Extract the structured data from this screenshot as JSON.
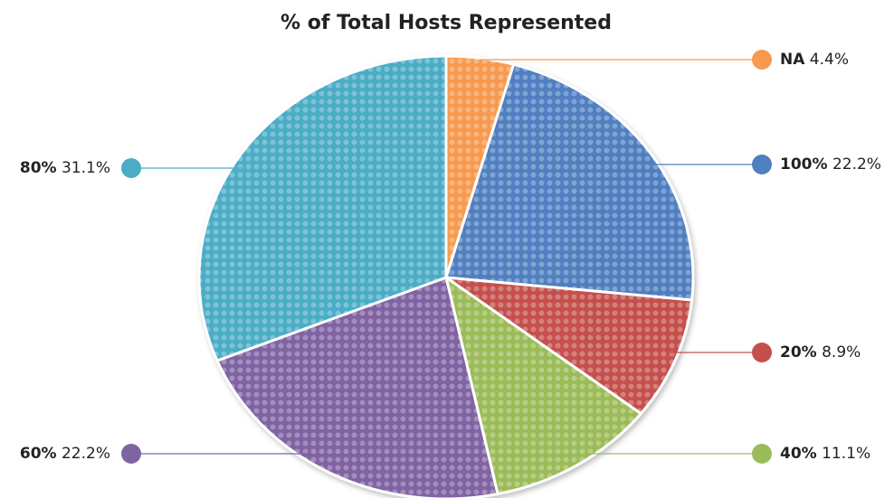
{
  "chart_data": {
    "type": "pie",
    "title": "% of Total Hosts Represented",
    "categories": [
      "NA",
      "100%",
      "20%",
      "40%",
      "60%",
      "80%"
    ],
    "values": [
      4.4,
      22.2,
      8.9,
      11.1,
      22.2,
      31.1
    ],
    "value_labels": [
      "4.4%",
      "22.2%",
      "8.9%",
      "11.1%",
      "22.2%",
      "31.1%"
    ],
    "colors": [
      "#f79a4f",
      "#4f7fc0",
      "#c4504c",
      "#9bbb59",
      "#8064a2",
      "#4bacc6"
    ]
  }
}
